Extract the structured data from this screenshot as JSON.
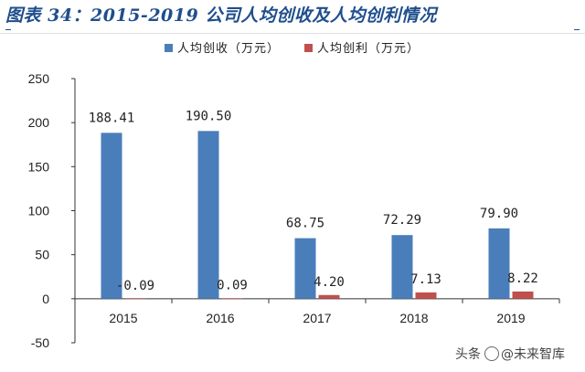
{
  "figure": {
    "title": "图表 34：2015-2019 公司人均创收及人均创利情况"
  },
  "watermark": {
    "source": "头条",
    "handle": "@未来智库"
  },
  "colors": {
    "series_revenue": "#4a7ebb",
    "series_profit": "#c0504d",
    "axis": "#333333",
    "title": "#1f4e8c"
  },
  "chart_data": {
    "type": "bar",
    "categories": [
      "2015",
      "2016",
      "2017",
      "2018",
      "2019"
    ],
    "series": [
      {
        "name": "人均创收（万元）",
        "values": [
          188.41,
          190.5,
          68.75,
          72.29,
          79.9
        ]
      },
      {
        "name": "人均创利（万元）",
        "values": [
          -0.09,
          0.09,
          4.2,
          7.13,
          8.22
        ]
      }
    ],
    "data_labels": [
      [
        "188.41",
        "190.50",
        "68.75",
        "72.29",
        "79.90"
      ],
      [
        "-0.09",
        "0.09",
        "4.20",
        "7.13",
        "8.22"
      ]
    ],
    "ylim": [
      -50,
      250
    ],
    "yticks": [
      -50,
      0,
      50,
      100,
      150,
      200,
      250
    ],
    "grid": false,
    "legend": "top-center"
  }
}
